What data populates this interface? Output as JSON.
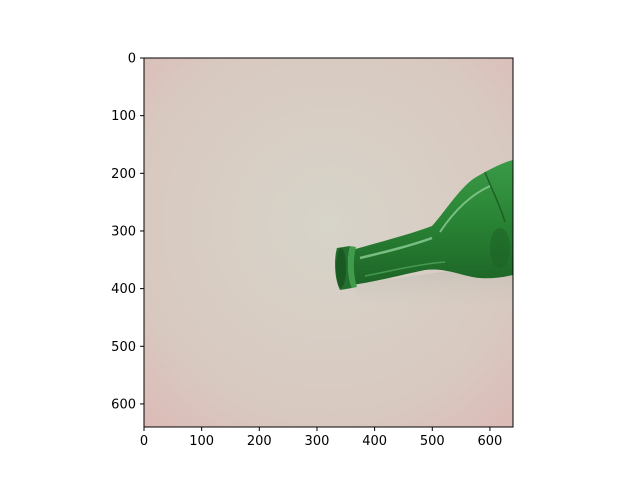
{
  "image": {
    "subject": "green-glass-bottle",
    "colors": {
      "background_center": "#d6d0c6",
      "background_edge": "#ddc0bc",
      "bottle_dark": "#1e6b2a",
      "bottle_mid": "#2f8f3c",
      "bottle_highlight": "#7cc486"
    }
  },
  "axes": {
    "x_ticks": [
      0,
      100,
      200,
      300,
      400,
      500,
      600
    ],
    "y_ticks": [
      0,
      100,
      200,
      300,
      400,
      500,
      600
    ],
    "x_range": [
      0,
      640
    ],
    "y_range": [
      640,
      0
    ]
  }
}
